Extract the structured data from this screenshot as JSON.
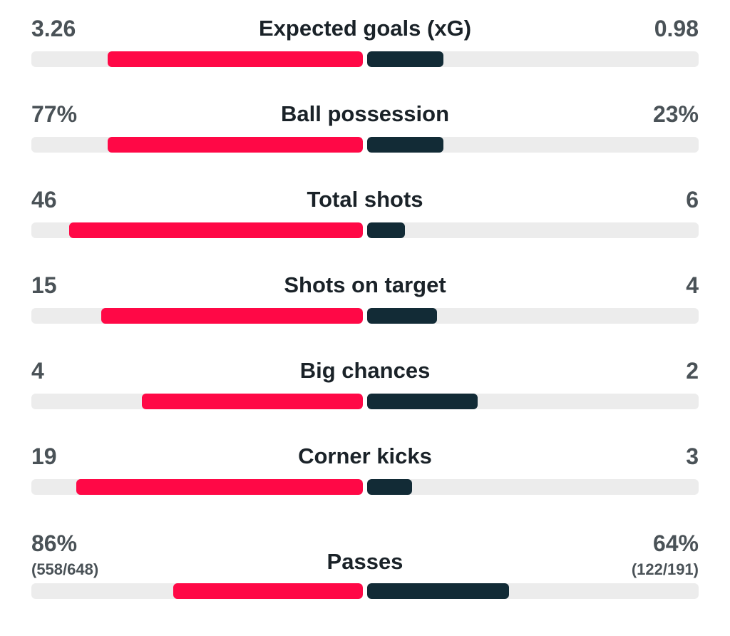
{
  "stats": [
    {
      "key": "xg",
      "label": "Expected goals (xG)",
      "home": "3.26",
      "away": "0.98",
      "home_share": 0.769,
      "away_share": 0.231
    },
    {
      "key": "possession",
      "label": "Ball possession",
      "home": "77%",
      "away": "23%",
      "home_share": 0.77,
      "away_share": 0.23
    },
    {
      "key": "total_shots",
      "label": "Total shots",
      "home": "46",
      "away": "6",
      "home_share": 0.885,
      "away_share": 0.115
    },
    {
      "key": "shots_on_target",
      "label": "Shots on target",
      "home": "15",
      "away": "4",
      "home_share": 0.789,
      "away_share": 0.211
    },
    {
      "key": "big_chances",
      "label": "Big chances",
      "home": "4",
      "away": "2",
      "home_share": 0.667,
      "away_share": 0.333
    },
    {
      "key": "corner_kicks",
      "label": "Corner kicks",
      "home": "19",
      "away": "3",
      "home_share": 0.864,
      "away_share": 0.136
    },
    {
      "key": "passes",
      "label": "Passes",
      "home": "86%",
      "away": "64%",
      "home_detail": "(558/648)",
      "away_detail": "(122/191)",
      "home_share": 0.573,
      "away_share": 0.427
    }
  ],
  "colors": {
    "home": "#ff0846",
    "away": "#122b36",
    "track": "#ececec"
  }
}
